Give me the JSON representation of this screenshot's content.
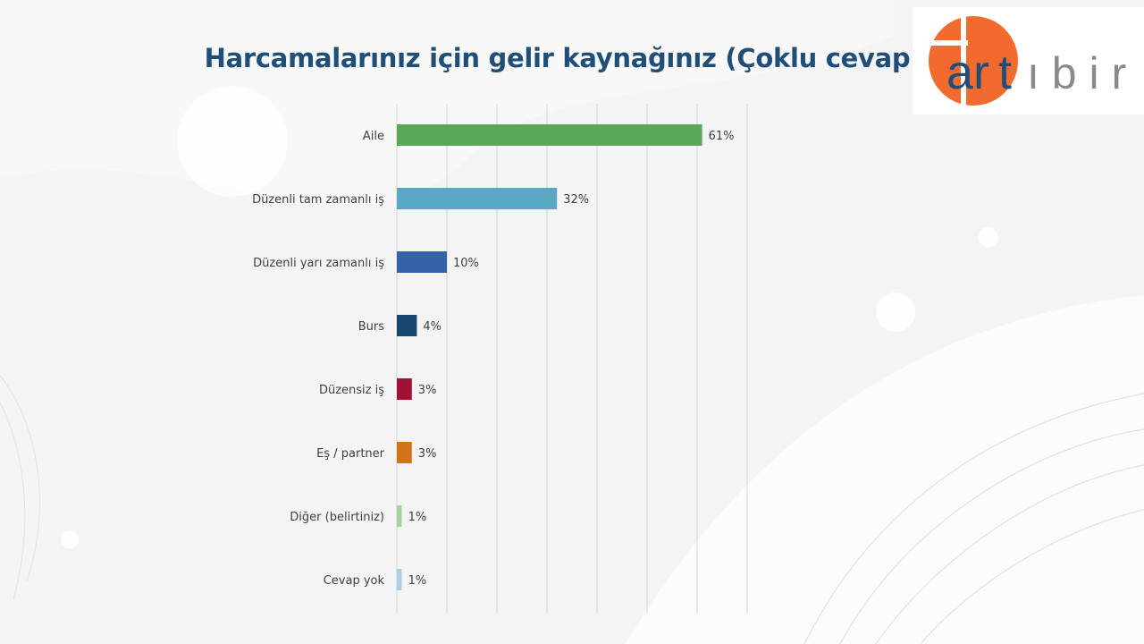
{
  "title": "Harcamalarınız için gelir kaynağınız (Çoklu cevap)",
  "logo": {
    "text_a": "ar",
    "text_t": "t",
    "text_rest": "ı b i r"
  },
  "chart_data": {
    "type": "bar",
    "orientation": "horizontal",
    "title": "Harcamalarınız için gelir kaynağınız (Çoklu cevap)",
    "categories": [
      "Aile",
      "Düzenli tam zamanlı iş",
      "Düzenli yarı zamanlı iş",
      "Burs",
      "Düzensiz iş",
      "Eş / partner",
      "Diğer (belirtiniz)",
      "Cevap yok"
    ],
    "values": [
      61,
      32,
      10,
      4,
      3,
      3,
      1,
      1
    ],
    "value_labels": [
      "61%",
      "32%",
      "10%",
      "4%",
      "3%",
      "3%",
      "1%",
      "1%"
    ],
    "colors": [
      "#5aa855",
      "#5ba7c6",
      "#3563a8",
      "#16466e",
      "#a11035",
      "#d17419",
      "#a6d49e",
      "#a8cfe6"
    ],
    "xlim": [
      0,
      70
    ],
    "grid": true,
    "legend": "none",
    "xlabel": "",
    "ylabel": ""
  }
}
